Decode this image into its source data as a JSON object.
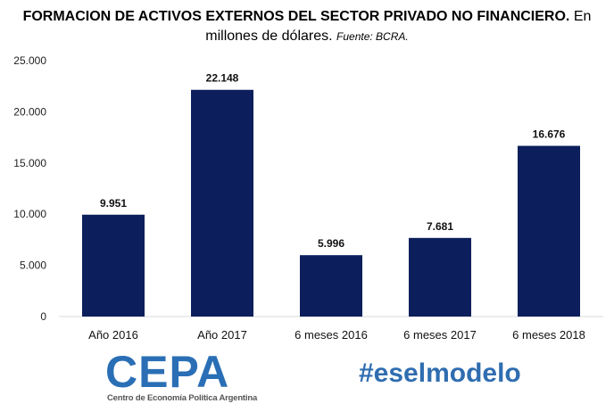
{
  "title": {
    "bold": "FORMACION DE ACTIVOS EXTERNOS DEL SECTOR PRIVADO NO FINANCIERO.",
    "normal": "En millones de dólares.",
    "source": "Fuente: BCRA."
  },
  "colors": {
    "bar": "#0c1f5c",
    "axis": "#d9d9d9",
    "logo_accent": "#2a6fb5",
    "hashtag": "#2f6db0"
  },
  "chart_data": {
    "type": "bar",
    "categories": [
      "Año 2016",
      "Año 2017",
      "6 meses 2016",
      "6 meses 2017",
      "6 meses 2018"
    ],
    "values": [
      9951,
      22148,
      5996,
      7681,
      16676
    ],
    "value_labels": [
      "9.951",
      "22.148",
      "5.996",
      "7.681",
      "16.676"
    ],
    "yticks": [
      0,
      5000,
      10000,
      15000,
      20000,
      25000
    ],
    "ytick_labels": [
      "0",
      "5.000",
      "10.000",
      "15.000",
      "20.000",
      "25.000"
    ],
    "ylim": [
      0,
      25000
    ],
    "grid": false,
    "legend": "none"
  },
  "logo": {
    "mark": "CEPA",
    "subtitle": "Centro de Economía Política Argentina"
  },
  "hashtag": "#eselmodelo"
}
